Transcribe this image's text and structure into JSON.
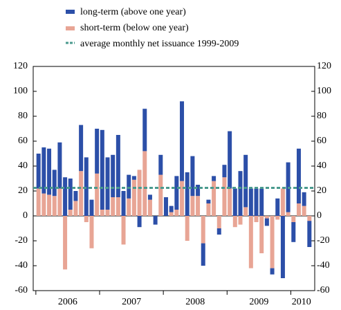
{
  "chart_data": {
    "type": "stacked_bar",
    "categories": [
      null,
      null,
      null,
      null,
      null,
      null,
      null,
      null,
      null,
      null,
      null,
      null,
      null,
      null,
      null,
      null,
      null,
      null,
      null,
      null,
      null,
      null,
      null,
      null,
      null,
      null,
      null,
      null,
      null,
      null,
      null,
      null,
      null,
      null,
      null,
      null,
      null,
      null,
      null,
      null,
      null,
      null,
      null,
      null,
      null,
      null,
      null,
      null,
      null,
      null,
      null,
      null
    ],
    "year_labels": [
      "2006",
      "2007",
      "2008",
      "2009",
      "2010"
    ],
    "series": [
      {
        "name": "long-term (above one year)",
        "color": "#2c4fa8",
        "values": [
          28,
          37,
          37,
          21,
          37,
          31,
          25,
          8,
          37,
          47,
          13,
          36,
          64,
          42,
          34,
          50,
          20,
          19,
          3,
          -9,
          34,
          4,
          -7,
          16,
          15,
          5,
          27,
          64,
          35,
          32,
          9,
          -18,
          3,
          4,
          -5,
          10,
          46,
          22,
          36,
          42,
          22,
          22,
          22,
          -6,
          -5,
          14,
          -50,
          40,
          -16,
          44,
          11,
          -21
        ]
      },
      {
        "name": "short-term (below one year)",
        "color": "#e8a595",
        "values": [
          22,
          18,
          17,
          16,
          22,
          -43,
          5,
          12,
          36,
          -5,
          -26,
          34,
          5,
          5,
          15,
          15,
          -23,
          14,
          29,
          37,
          52,
          13,
          0,
          33,
          0,
          3,
          5,
          28,
          -20,
          16,
          16,
          -22,
          10,
          28,
          -10,
          31,
          22,
          -9,
          -7,
          7,
          -42,
          -5,
          -30,
          -2,
          -42,
          -3,
          22,
          3,
          -5,
          10,
          8,
          -4
        ]
      }
    ],
    "average_line": {
      "name": "average monthly net issuance 1999-2009",
      "value": 22.5,
      "color": "#4a9a8e"
    },
    "ylim": [
      -60,
      120
    ],
    "yticks": [
      -60,
      -40,
      -20,
      0,
      20,
      40,
      60,
      80,
      100,
      120
    ],
    "y2lim": [
      -60,
      120
    ],
    "y2ticks": [
      -60,
      -40,
      -20,
      0,
      20,
      40,
      60,
      80,
      100,
      120
    ]
  }
}
